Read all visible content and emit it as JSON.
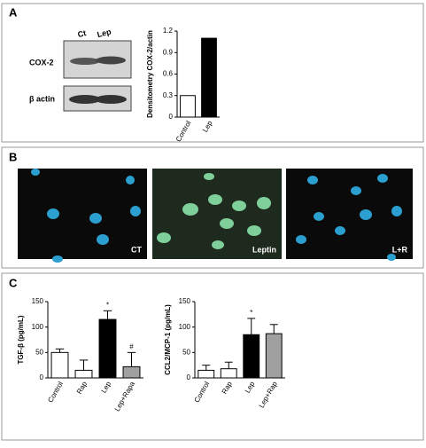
{
  "panels": [
    "A",
    "B",
    "C"
  ],
  "blot": {
    "lanes": [
      "Ct",
      "Lep"
    ],
    "rows": [
      "COX-2",
      "β actin"
    ]
  },
  "images": [
    "CT",
    "Leptin",
    "L+R"
  ],
  "chart_data": [
    {
      "type": "bar",
      "ylabel": "Densitometry COX-2/actin",
      "categories": [
        "Control",
        "Lep"
      ],
      "values": [
        0.3,
        1.1
      ],
      "colors": [
        "#ffffff",
        "#000000"
      ],
      "ylim": [
        0,
        1.2
      ],
      "yticks": [
        0,
        0.3,
        0.6,
        0.9,
        1.2
      ]
    },
    {
      "type": "bar",
      "ylabel": "TGF-β (pg/mL)",
      "categories": [
        "Control",
        "Rap",
        "Lep",
        "Lep+Rapa"
      ],
      "values": [
        50,
        15,
        115,
        22
      ],
      "errors": [
        7,
        20,
        17,
        28
      ],
      "annotations": [
        null,
        null,
        "*",
        "#"
      ],
      "colors": [
        "#ffffff",
        "#ffffff",
        "#000000",
        "#a0a0a0"
      ],
      "ylim": [
        0,
        150
      ],
      "yticks": [
        0,
        50,
        100,
        150
      ]
    },
    {
      "type": "bar",
      "ylabel": "CCL2/MCP-1 (pg/mL)",
      "categories": [
        "Control",
        "Rap",
        "Lep",
        "Lep+Rap"
      ],
      "values": [
        15,
        18,
        85,
        87
      ],
      "errors": [
        10,
        13,
        32,
        18
      ],
      "annotations": [
        null,
        null,
        "*",
        null
      ],
      "colors": [
        "#ffffff",
        "#ffffff",
        "#000000",
        "#a0a0a0"
      ],
      "ylim": [
        0,
        150
      ],
      "yticks": [
        0,
        50,
        100,
        150
      ]
    }
  ]
}
